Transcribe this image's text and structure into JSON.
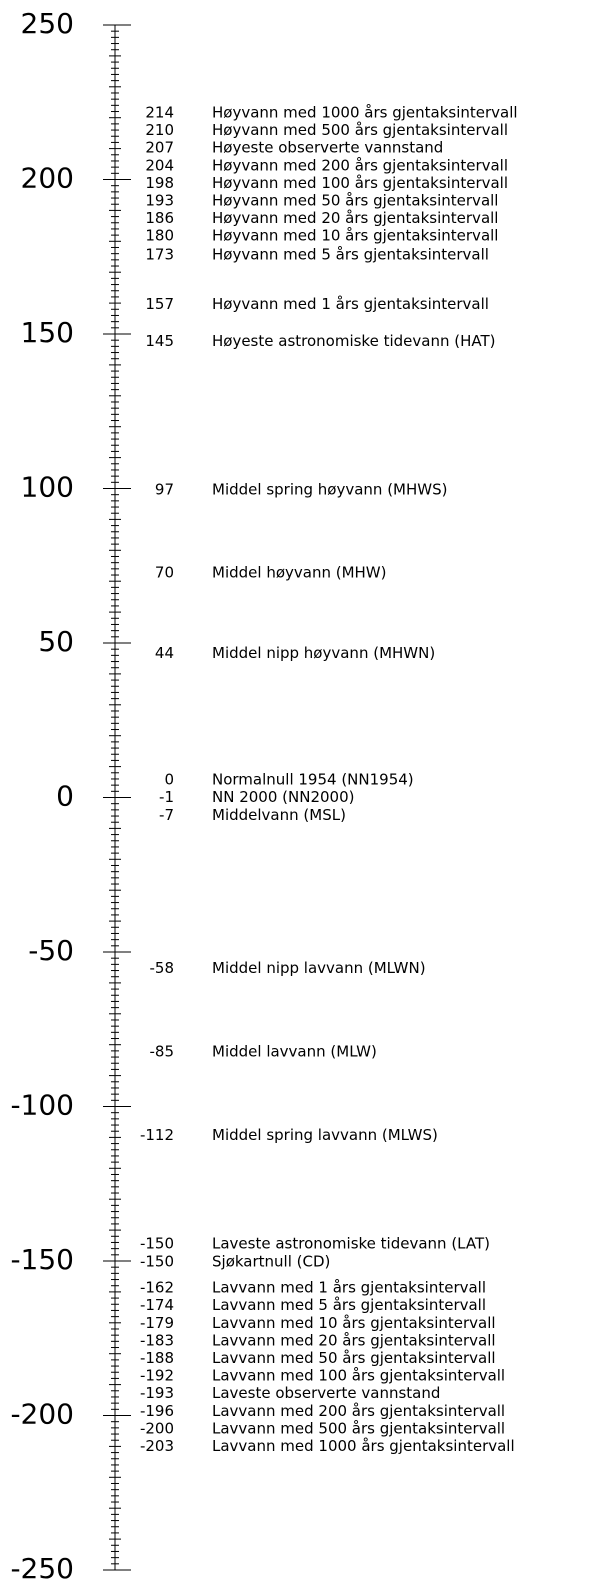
{
  "chart_data": {
    "type": "level-scale",
    "ylim": [
      -250,
      250
    ],
    "yticks": [
      250,
      200,
      150,
      100,
      50,
      0,
      -50,
      -100,
      -150,
      -200,
      -250
    ],
    "minor_tick_interval": 2,
    "levels": [
      {
        "value": 214,
        "label": "Høyvann med 1000 års gjentaksintervall"
      },
      {
        "value": 210,
        "label": "Høyvann med 500 års gjentaksintervall"
      },
      {
        "value": 207,
        "label": "Høyeste observerte vannstand"
      },
      {
        "value": 204,
        "label": "Høyvann med 200 års gjentaksintervall"
      },
      {
        "value": 198,
        "label": "Høyvann med 100 års gjentaksintervall"
      },
      {
        "value": 193,
        "label": "Høyvann med 50 års gjentaksintervall"
      },
      {
        "value": 186,
        "label": "Høyvann med 20 års gjentaksintervall"
      },
      {
        "value": 180,
        "label": "Høyvann med 10 års gjentaksintervall"
      },
      {
        "value": 173,
        "label": "Høyvann med 5 års gjentaksintervall"
      },
      {
        "value": 157,
        "label": "Høyvann med 1 års gjentaksintervall"
      },
      {
        "value": 145,
        "label": "Høyeste astronomiske tidevann (HAT)"
      },
      {
        "value": 97,
        "label": "Middel spring høyvann (MHWS)"
      },
      {
        "value": 70,
        "label": "Middel høyvann (MHW)"
      },
      {
        "value": 44,
        "label": "Middel nipp høyvann (MHWN)"
      },
      {
        "value": 0,
        "label": "Normalnull 1954 (NN1954)"
      },
      {
        "value": -1,
        "label": "NN 2000 (NN2000)"
      },
      {
        "value": -7,
        "label": "Middelvann (MSL)"
      },
      {
        "value": -58,
        "label": "Middel nipp lavvann (MLWN)"
      },
      {
        "value": -85,
        "label": "Middel lavvann (MLW)"
      },
      {
        "value": -112,
        "label": "Middel spring lavvann (MLWS)"
      },
      {
        "value": -150,
        "label": "Laveste astronomiske tidevann (LAT)"
      },
      {
        "value": -150,
        "label": "Sjøkartnull (CD)"
      },
      {
        "value": -162,
        "label": "Lavvann med 1 års gjentaksintervall"
      },
      {
        "value": -174,
        "label": "Lavvann med 5 års gjentaksintervall"
      },
      {
        "value": -179,
        "label": "Lavvann med 10 års gjentaksintervall"
      },
      {
        "value": -183,
        "label": "Lavvann med 20 års gjentaksintervall"
      },
      {
        "value": -188,
        "label": "Lavvann med 50 års gjentaksintervall"
      },
      {
        "value": -192,
        "label": "Lavvann med 100 års gjentaksintervall"
      },
      {
        "value": -193,
        "label": "Laveste observerte vannstand"
      },
      {
        "value": -196,
        "label": "Lavvann med 200 års gjentaksintervall"
      },
      {
        "value": -200,
        "label": "Lavvann med 500 års gjentaksintervall"
      },
      {
        "value": -203,
        "label": "Lavvann med 1000 års gjentaksintervall"
      }
    ]
  }
}
